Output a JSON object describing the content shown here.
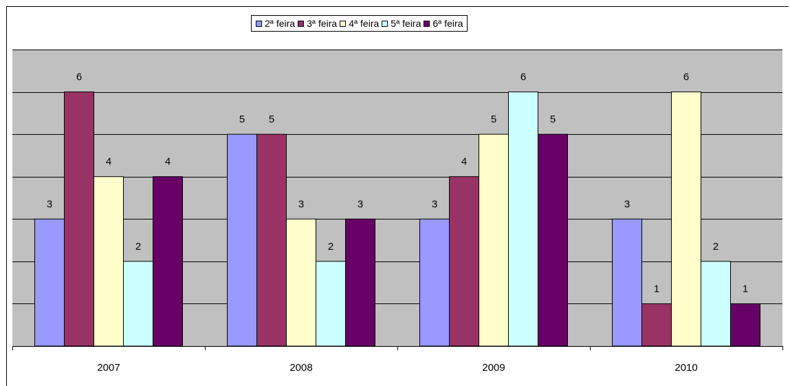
{
  "chart_data": {
    "type": "bar",
    "title": "",
    "xlabel": "",
    "ylabel": "",
    "categories": [
      "2007",
      "2008",
      "2009",
      "2010"
    ],
    "series": [
      {
        "name": "2ª feira",
        "color": "#9999ff",
        "values": [
          3,
          5,
          3,
          3
        ]
      },
      {
        "name": "3ª feira",
        "color": "#993366",
        "values": [
          6,
          5,
          4,
          1
        ]
      },
      {
        "name": "4ª feira",
        "color": "#ffffcc",
        "values": [
          4,
          3,
          5,
          6
        ]
      },
      {
        "name": "5ª feira",
        "color": "#ccffff",
        "values": [
          2,
          2,
          6,
          2
        ]
      },
      {
        "name": "6ª feira",
        "color": "#660066",
        "values": [
          4,
          3,
          5,
          1
        ]
      }
    ],
    "ylim": [
      0,
      7
    ],
    "grid": true,
    "plot_background": "#c0c0c0",
    "legend_position": "top-center",
    "data_labels": true
  }
}
